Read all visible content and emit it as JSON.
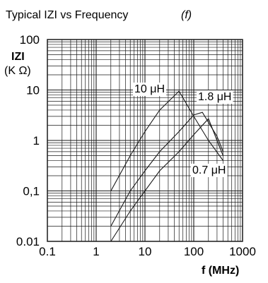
{
  "chart_data": {
    "type": "line",
    "title": "Typical IZI vs Frequency",
    "title_symbol": "(f)",
    "xlabel": "f (MHz)",
    "ylabel": "IZI",
    "yunit": "(K Ω)",
    "xscale": "log",
    "yscale": "log",
    "xlim": [
      0.1,
      1000
    ],
    "ylim": [
      0.01,
      100
    ],
    "grid": true,
    "x_tick_labels": [
      "0.1",
      "1",
      "10",
      "100",
      "1000"
    ],
    "y_tick_labels": [
      "0.01",
      "0,1",
      "1",
      "10",
      "100"
    ],
    "series": [
      {
        "name": "10 μH",
        "x": [
          2,
          5,
          10,
          20,
          50,
          100,
          200,
          400
        ],
        "y": [
          0.1,
          0.5,
          1.5,
          4,
          9.5,
          3,
          1,
          0.4
        ]
      },
      {
        "name": "1.8 μH",
        "x": [
          2,
          5,
          10,
          20,
          50,
          100,
          150,
          300,
          400
        ],
        "y": [
          0.02,
          0.1,
          0.25,
          0.6,
          1.5,
          3.2,
          3.6,
          1.2,
          0.6
        ]
      },
      {
        "name": "0.7 μH",
        "x": [
          2,
          5,
          10,
          20,
          50,
          100,
          200,
          300,
          400
        ],
        "y": [
          0.01,
          0.04,
          0.1,
          0.25,
          0.6,
          1.3,
          2.7,
          1.0,
          0.5
        ]
      }
    ]
  }
}
